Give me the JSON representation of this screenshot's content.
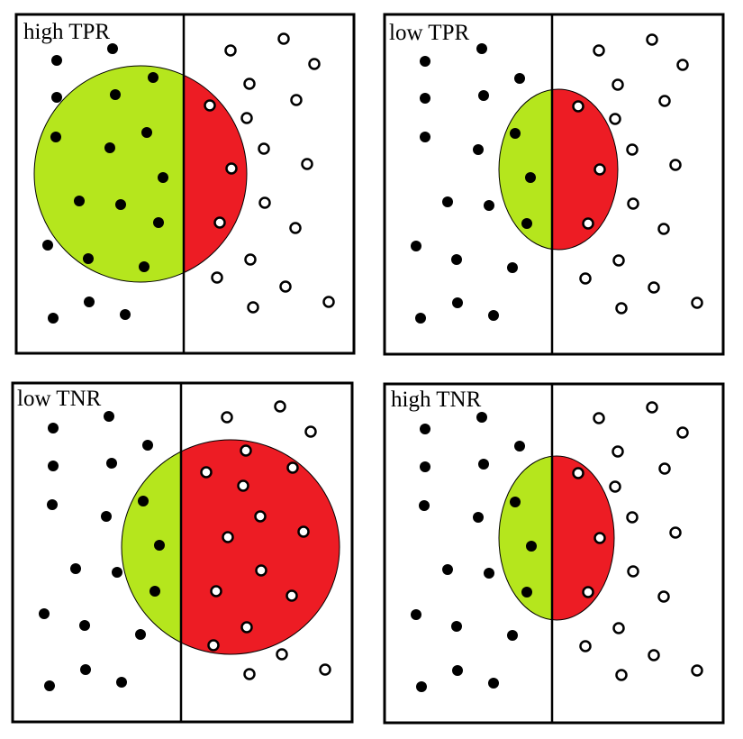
{
  "colors": {
    "positive_dot": "#000000",
    "negative_dot": "#ffffff",
    "true_positive_region": "#b5e61d",
    "false_positive_region": "#ed1c24",
    "frame": "#000000"
  },
  "panels": [
    {
      "title": "high TPR"
    },
    {
      "title": "low TPR"
    },
    {
      "title": "low TNR"
    },
    {
      "title": "high TNR"
    }
  ]
}
